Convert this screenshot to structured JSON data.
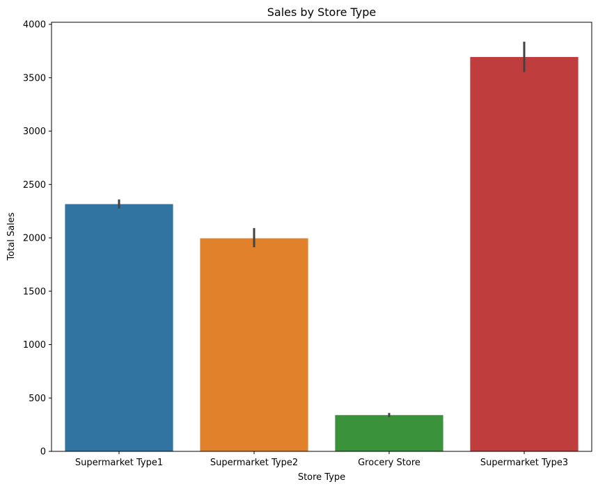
{
  "chart_data": {
    "type": "bar",
    "title": "Sales by Store Type",
    "xlabel": "Store Type",
    "ylabel": "Total Sales",
    "categories": [
      "Supermarket Type1",
      "Supermarket Type2",
      "Grocery Store",
      "Supermarket Type3"
    ],
    "values": [
      2316,
      1996,
      340,
      3694
    ],
    "error_bars": [
      [
        2275,
        2360
      ],
      [
        1912,
        2092
      ],
      [
        322,
        360
      ],
      [
        3552,
        3838
      ]
    ],
    "colors": [
      "#3274a1",
      "#e1812c",
      "#3a923a",
      "#c03d3e"
    ],
    "error_bar_color": "#424242",
    "ylim": [
      0,
      4000
    ],
    "yticks": [
      "0",
      "500",
      "1000",
      "1500",
      "2000",
      "2500",
      "3000",
      "3500",
      "4000"
    ],
    "ytick_values": [
      0,
      500,
      1000,
      1500,
      2000,
      2500,
      3000,
      3500,
      4000
    ],
    "grid": false,
    "legend": "none"
  }
}
